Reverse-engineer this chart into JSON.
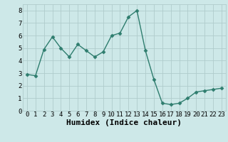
{
  "x": [
    0,
    1,
    2,
    3,
    4,
    5,
    6,
    7,
    8,
    9,
    10,
    11,
    12,
    13,
    14,
    15,
    16,
    17,
    18,
    19,
    20,
    21,
    22,
    23
  ],
  "y": [
    2.9,
    2.8,
    4.9,
    5.9,
    5.0,
    4.3,
    5.3,
    4.8,
    4.3,
    4.7,
    6.0,
    6.2,
    7.5,
    8.0,
    4.8,
    2.5,
    0.6,
    0.5,
    0.6,
    1.0,
    1.5,
    1.6,
    1.7,
    1.8
  ],
  "line_color": "#2e7d6e",
  "marker": "D",
  "marker_size": 2.5,
  "linewidth": 1.0,
  "xlabel": "Humidex (Indice chaleur)",
  "xlim": [
    -0.5,
    23.5
  ],
  "ylim": [
    0,
    8.5
  ],
  "xtick_labels": [
    "0",
    "1",
    "2",
    "3",
    "4",
    "5",
    "6",
    "7",
    "8",
    "9",
    "10",
    "11",
    "12",
    "13",
    "14",
    "15",
    "16",
    "17",
    "18",
    "19",
    "20",
    "21",
    "22",
    "23"
  ],
  "ytick_values": [
    0,
    1,
    2,
    3,
    4,
    5,
    6,
    7,
    8
  ],
  "background_color": "#cde8e8",
  "grid_color": "#b0cccc",
  "xlabel_fontsize": 8,
  "tick_fontsize": 6.5
}
